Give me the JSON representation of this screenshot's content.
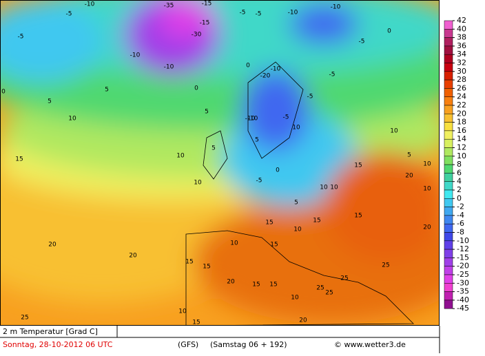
{
  "map": {
    "title": "2 m Temperatur [Grad C]",
    "date": "Sonntag, 28-10-2012  06 UTC",
    "model": "(GFS)",
    "run": "(Samstag 06 + 192)",
    "credit": "© www.wetter3.de",
    "labels": [
      -35,
      -15,
      -10,
      -5,
      -10,
      -10,
      -5,
      -10,
      -5,
      -5,
      -10,
      -20,
      -30,
      -15,
      0,
      0,
      -5,
      -5,
      -10,
      -10,
      -5,
      -5,
      0,
      5,
      5,
      5,
      0,
      10,
      10,
      -10,
      -5,
      0,
      5,
      10,
      15,
      15,
      10,
      5,
      10,
      10,
      10,
      5,
      10,
      15,
      15,
      10,
      15,
      15,
      20,
      20,
      15,
      20,
      20,
      15,
      20,
      25,
      25,
      25,
      25,
      25,
      15,
      10,
      15,
      10,
      20,
      15,
      10,
      5,
      10
    ],
    "colorbar": {
      "ticks": [
        42,
        40,
        38,
        36,
        34,
        32,
        30,
        28,
        26,
        24,
        22,
        20,
        18,
        16,
        14,
        12,
        10,
        8,
        6,
        4,
        2,
        0,
        -2,
        -4,
        -6,
        -8,
        -10,
        -12,
        -15,
        -20,
        -25,
        -30,
        -35,
        -40,
        -45
      ],
      "colors": [
        "#f060d0",
        "#c83890",
        "#b02060",
        "#a01040",
        "#b00020",
        "#c80010",
        "#d82000",
        "#e84000",
        "#f06000",
        "#f88010",
        "#f8a020",
        "#f8c030",
        "#f8e040",
        "#f0f060",
        "#d8f060",
        "#b0e860",
        "#80e060",
        "#50d870",
        "#40d0a0",
        "#40d8c8",
        "#40e8f0",
        "#40c8f0",
        "#40a8f0",
        "#4088f0",
        "#4068f0",
        "#4048e8",
        "#6040e8",
        "#8040e8",
        "#a040e8",
        "#c040e8",
        "#e040e8",
        "#f040d0",
        "#c020b0",
        "#901090"
      ]
    }
  }
}
